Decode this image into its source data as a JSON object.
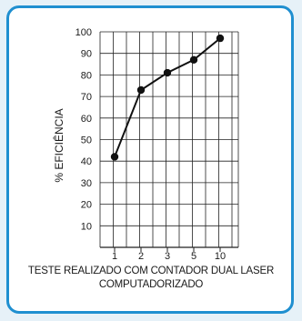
{
  "chart_data": {
    "type": "line",
    "categories": [
      "1",
      "2",
      "3",
      "5",
      "10"
    ],
    "series": [
      {
        "values": [
          42,
          73,
          81,
          87,
          97
        ]
      }
    ],
    "ylabel": "% EFICIÊNCIA",
    "xlabel": "",
    "ylim": [
      0,
      100
    ],
    "yticks": [
      10,
      20,
      30,
      40,
      50,
      60,
      70,
      80,
      90,
      100
    ],
    "grid": true,
    "caption_line1": "TESTE REALIZADO COM CONTADOR DUAL LASER",
    "caption_line2": "COMPUTADORIZADO",
    "colors": {
      "frame": "#1f8fd0",
      "background": "#e6f1f8",
      "line": "#111111"
    }
  }
}
